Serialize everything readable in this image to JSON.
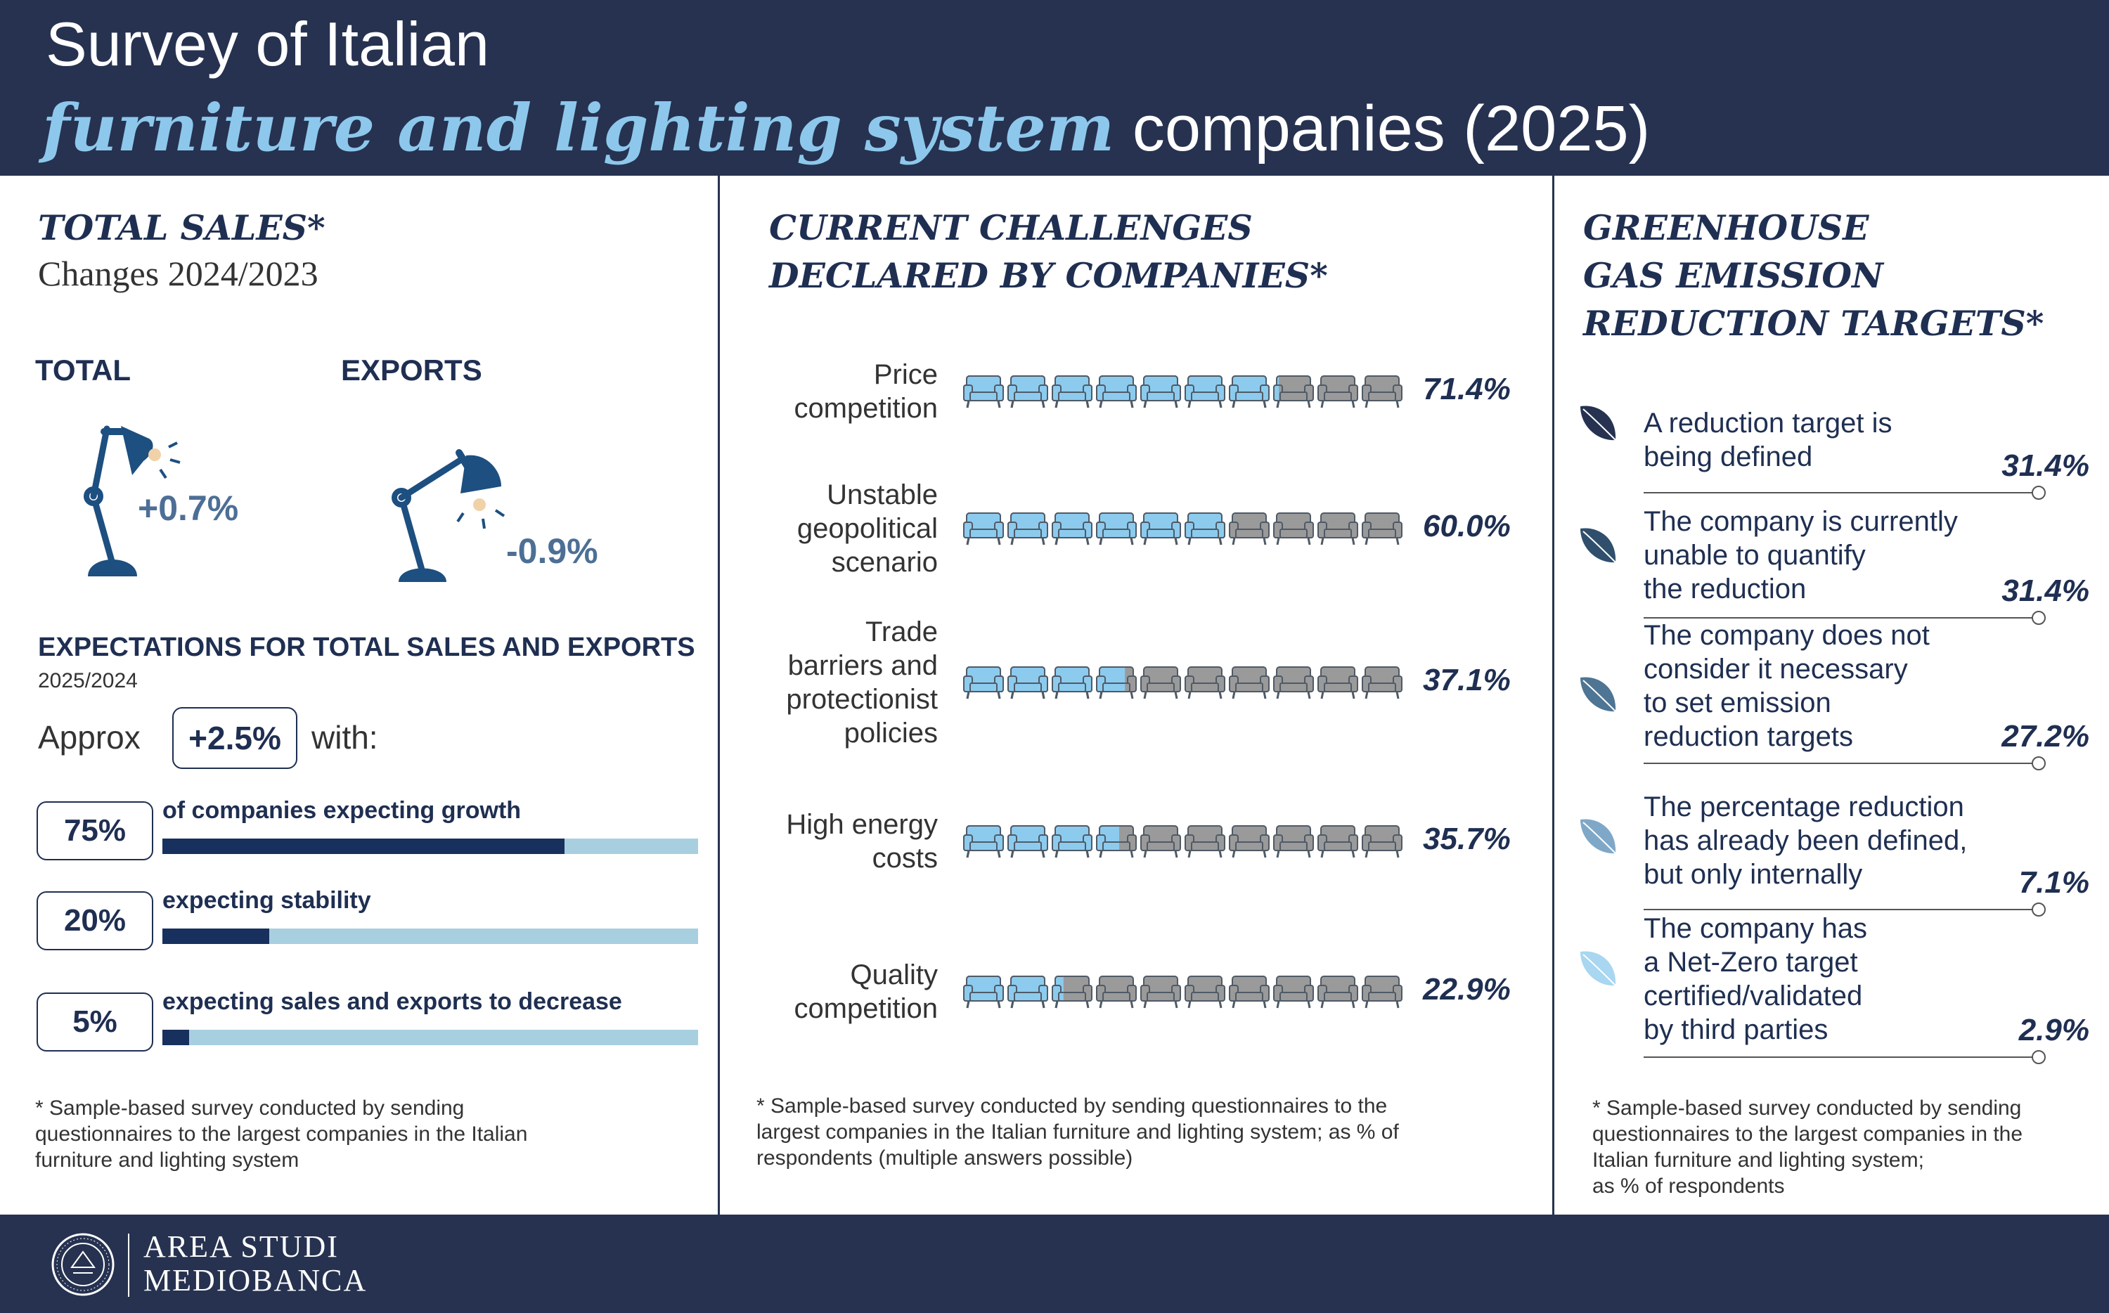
{
  "header": {
    "line1": "Survey of Italian",
    "line2_italic": "furniture and lighting system",
    "line2_rest": " companies (2025)"
  },
  "sales": {
    "title": "TOTAL SALES*",
    "subtitle": "Changes 2024/2023",
    "total_label": "TOTAL",
    "exports_label": "EXPORTS",
    "total_value": "+0.7%",
    "exports_value": "-0.9%"
  },
  "expectations": {
    "title": "EXPECTATIONS FOR TOTAL SALES AND EXPORTS",
    "period": "2025/2024",
    "approx_label": "Approx",
    "approx_value": "+2.5%",
    "with_label": "with:",
    "bars": [
      {
        "percent_label": "75%",
        "share": 75,
        "label": "of companies expecting growth"
      },
      {
        "percent_label": "20%",
        "share": 20,
        "label": "expecting stability"
      },
      {
        "percent_label": "5%",
        "share": 5,
        "label": "expecting sales and exports to decrease"
      }
    ]
  },
  "notes": {
    "left": [
      "* Sample-based survey conducted by sending",
      "questionnaires to the largest companies in the Italian",
      "furniture and lighting system"
    ],
    "middle": [
      "* Sample-based survey conducted by sending questionnaires to the",
      "largest companies in the Italian furniture and lighting system; as % of",
      "respondents (multiple answers possible)"
    ],
    "right": [
      "* Sample-based survey conducted by sending",
      "questionnaires to the largest companies in the",
      "Italian furniture and lighting system;",
      "as % of respondents"
    ]
  },
  "challenges": {
    "title_lines": [
      "CURRENT CHALLENGES",
      "DECLARED BY COMPANIES*"
    ]
  },
  "greenhouse": {
    "title_lines": [
      "GREENHOUSE",
      "GAS EMISSION",
      "REDUCTION TARGETS*"
    ]
  },
  "chart_data": [
    {
      "type": "bar",
      "title": "CURRENT CHALLENGES DECLARED BY COMPANIES*",
      "categories": [
        [
          "Price",
          "competition"
        ],
        [
          "Unstable",
          "geopolitical",
          "scenario"
        ],
        [
          "Trade",
          "barriers and",
          "protectionist",
          "policies"
        ],
        [
          "High energy",
          "costs"
        ],
        [
          "Quality",
          "competition"
        ]
      ],
      "values": [
        71.4,
        60.0,
        37.1,
        35.7,
        22.9
      ],
      "value_labels": [
        "71.4%",
        "60.0%",
        "37.1%",
        "35.7%",
        "22.9%"
      ],
      "icon": "armchair-icon",
      "icon_count": 10,
      "colors": {
        "filled": "#8ccbee",
        "empty": "#9a9a9a"
      }
    },
    {
      "type": "bar",
      "title": "GREENHOUSE GAS EMISSION REDUCTION TARGETS*",
      "categories": [
        [
          "A reduction target is",
          "being defined"
        ],
        [
          "The company is currently",
          "unable to quantify",
          "the reduction"
        ],
        [
          "The company does not",
          "consider it necessary",
          "to set emission",
          "reduction targets"
        ],
        [
          "The percentage reduction",
          "has already been defined,",
          "but only internally"
        ],
        [
          "The company has",
          "a Net-Zero target",
          "certified/validated",
          "by third parties"
        ]
      ],
      "values": [
        31.4,
        31.4,
        27.2,
        7.1,
        2.9
      ],
      "value_labels": [
        "31.4%",
        "31.4%",
        "27.2%",
        "7.1%",
        "2.9%"
      ],
      "icon": "leaf-icon",
      "colors": {
        "leaves": [
          "#263250",
          "#2f4f6c",
          "#4e7593",
          "#7fa8c8",
          "#a9d6f0"
        ]
      }
    }
  ],
  "footer": {
    "brand_line1": "AREA STUDI",
    "brand_line2": "MEDIOBANCA"
  }
}
